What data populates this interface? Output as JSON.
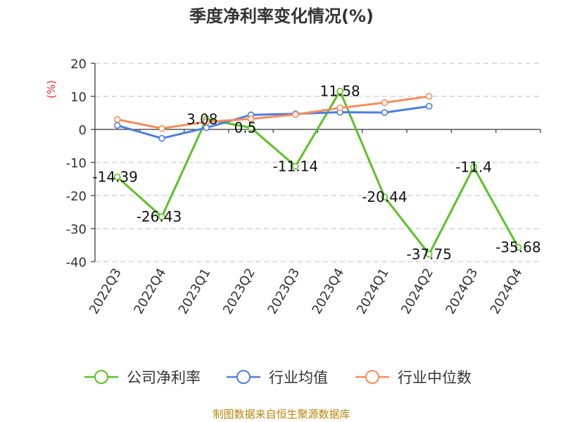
{
  "chart_data": {
    "type": "line",
    "title": "季度净利率变化情况(%)",
    "ylabel": "(%)",
    "categories": [
      "2022Q3",
      "2022Q4",
      "2023Q1",
      "2023Q2",
      "2023Q3",
      "2023Q4",
      "2024Q1",
      "2024Q2",
      "2024Q3",
      "2024Q4"
    ],
    "ylim": [
      -40,
      20
    ],
    "yticks": [
      "20",
      "10",
      "0",
      "-10",
      "-20",
      "-30",
      "-40"
    ],
    "grid": true,
    "legend_position": "bottom",
    "series": [
      {
        "name": "公司净利率",
        "color": "#5cc126",
        "values": [
          -14.39,
          -26.43,
          3.08,
          0.5,
          -11.14,
          11.58,
          -20.44,
          -37.75,
          -11.4,
          -35.68
        ],
        "labels": [
          "-14.39",
          "-26.43",
          "3.08",
          "0.5",
          "-11.14",
          "11.58",
          "-20.44",
          "-37.75",
          "-11.4",
          "-35.68"
        ]
      },
      {
        "name": "行业均值",
        "color": "#4a7ee0",
        "values": [
          1.2,
          -2.7,
          0.5,
          4.4,
          4.7,
          5.2,
          5.1,
          7.0,
          null,
          null
        ]
      },
      {
        "name": "行业中位数",
        "color": "#f78d5b",
        "values": [
          3.0,
          0.3,
          2.3,
          3.2,
          4.5,
          6.5,
          8.1,
          10.0,
          null,
          null
        ]
      }
    ]
  },
  "source": "制图数据来自恒生聚源数据库"
}
